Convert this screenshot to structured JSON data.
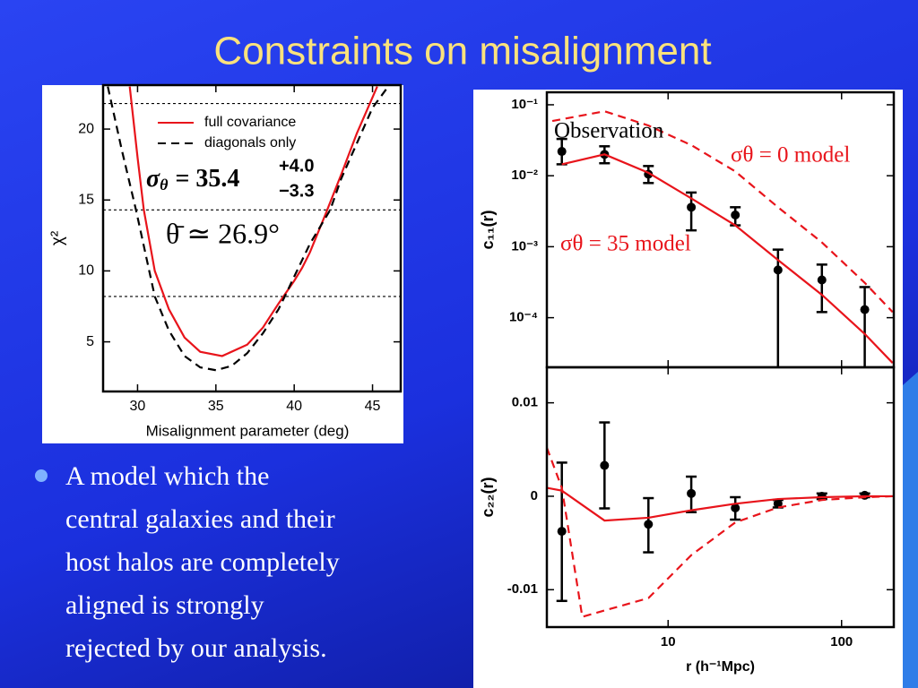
{
  "slide": {
    "title": "Constraints on misalignment",
    "bullet_lines": [
      "A model which the",
      "central galaxies and their",
      "host halos are completely",
      "aligned is strongly",
      "rejected by our analysis."
    ]
  },
  "chart_data": [
    {
      "type": "line",
      "xlabel": "Misalignment parameter (deg)",
      "ylabel": "χ²",
      "xlim": [
        27.8,
        46.8
      ],
      "ylim": [
        1.5,
        23.1
      ],
      "xticks": [
        30,
        35,
        40,
        45
      ],
      "yticks": [
        5,
        10,
        15,
        20
      ],
      "hlines": [
        21.8,
        14.3,
        8.2
      ],
      "legend": "upper right",
      "series": [
        {
          "name": "full covariance",
          "color": "#e8141b",
          "style": "solid",
          "x": [
            29.5,
            30,
            30.4,
            31.1,
            32,
            33,
            34,
            35.4,
            37,
            38,
            39,
            40,
            40.5,
            41,
            42,
            43,
            44,
            45.3
          ],
          "values": [
            23,
            18,
            14.3,
            10,
            7.3,
            5.3,
            4.3,
            4,
            4.8,
            6,
            7.7,
            9.3,
            10.2,
            11.3,
            14,
            16.8,
            19.7,
            23
          ]
        },
        {
          "name": "diagonals only",
          "color": "#000000",
          "style": "dashed",
          "x": [
            28.1,
            29,
            29.9,
            31.1,
            32,
            33,
            34,
            35,
            36,
            37,
            38,
            39,
            39.4,
            40,
            41,
            42.3,
            43,
            44,
            45,
            46
          ],
          "values": [
            23,
            18.5,
            14.3,
            8.2,
            5.8,
            4,
            3.2,
            3,
            3.3,
            4.2,
            5.6,
            7.3,
            8.2,
            9.6,
            11.9,
            14.3,
            16.5,
            19,
            21.5,
            23
          ]
        }
      ],
      "annotations": [
        {
          "symbol": "σ",
          "subscript": "θ",
          "text": "= 35.4",
          "upper": "+4.0",
          "lower": "−3.3"
        },
        {
          "text": "θ̄ ≃ 26.9°"
        }
      ]
    },
    {
      "type": "line",
      "ylabel": "c₁₁(r)",
      "xlog": true,
      "ylog": true,
      "xlim": [
        2,
        200
      ],
      "ylim": [
        2e-05,
        0.15
      ],
      "yticks": [
        {
          "value": 0.1,
          "label": "10⁻¹"
        },
        {
          "value": 0.01,
          "label": "10⁻²"
        },
        {
          "value": 0.001,
          "label": "10⁻³"
        },
        {
          "value": 0.0001,
          "label": "10⁻⁴"
        }
      ],
      "series": [
        {
          "name": "Observation",
          "color": "#000000",
          "style": "points",
          "x": [
            2.44,
            4.3,
            7.7,
            13.6,
            24.4,
            43,
            77,
            136
          ],
          "values": [
            0.022,
            0.02,
            0.0105,
            0.0036,
            0.0028,
            0.00047,
            0.00034,
            0.00013
          ],
          "lower": [
            0.0145,
            0.015,
            0.0079,
            0.0017,
            0.002,
            2e-05,
            0.00012,
            2e-05
          ],
          "upper": [
            0.033,
            0.026,
            0.0137,
            0.0058,
            0.0036,
            0.00091,
            0.00056,
            0.00027
          ]
        },
        {
          "name": "σθ = 0 model",
          "color": "#e8141b",
          "style": "dashed",
          "x": [
            2.15,
            4.3,
            7.7,
            13.6,
            24.4,
            43,
            77,
            136,
            197
          ],
          "values": [
            0.059,
            0.081,
            0.051,
            0.027,
            0.0115,
            0.0036,
            0.00115,
            0.00031,
            0.00012
          ]
        },
        {
          "name": "σθ = 35 model",
          "color": "#e8141b",
          "style": "solid",
          "x": [
            2.44,
            4.3,
            7.7,
            13.6,
            24.4,
            43,
            77,
            136,
            197
          ],
          "values": [
            0.0145,
            0.02,
            0.011,
            0.0048,
            0.002,
            0.00065,
            0.00021,
            5.9e-05,
            2.3e-05
          ]
        }
      ]
    },
    {
      "type": "line",
      "xlabel": "r (h⁻¹Mpc)",
      "ylabel": "c₂₂(r)",
      "xlog": true,
      "xlim": [
        2,
        200
      ],
      "ylim": [
        -0.014,
        0.0138
      ],
      "xticks": [
        10,
        100
      ],
      "yticks": [
        0.01,
        0,
        -0.01
      ],
      "series": [
        {
          "color": "#000000",
          "style": "points",
          "x": [
            2.44,
            4.3,
            7.7,
            13.6,
            24.4,
            43,
            77,
            136
          ],
          "values": [
            -0.00375,
            0.0033,
            -0.003,
            0.0003,
            -0.00125,
            -0.0008,
            0,
            0.0001
          ],
          "lower": [
            -0.0112,
            -0.0013,
            -0.006,
            -0.0017,
            -0.0025,
            -0.0012,
            -0.0003,
            -0.0001
          ],
          "upper": [
            0.0036,
            0.0079,
            -0.0002,
            0.0021,
            -0.0001,
            -0.0004,
            0.0003,
            0.0003
          ]
        },
        {
          "color": "#e8141b",
          "style": "solid",
          "x": [
            2,
            2.44,
            4.3,
            7.7,
            13.6,
            24.4,
            43,
            77,
            136,
            197
          ],
          "values": [
            0.0009,
            0.0006,
            -0.0026,
            -0.0023,
            -0.0015,
            -0.0008,
            -0.0003,
            -0.0001,
            0,
            0
          ]
        },
        {
          "color": "#e8141b",
          "style": "dashed",
          "x": [
            2,
            2.44,
            3.2,
            7.7,
            13.6,
            24.4,
            43,
            77,
            136,
            197
          ],
          "values": [
            0.0052,
            0.0009,
            -0.0129,
            -0.0109,
            -0.0063,
            -0.0028,
            -0.0012,
            -0.0004,
            -0.0001,
            0
          ]
        }
      ]
    }
  ]
}
